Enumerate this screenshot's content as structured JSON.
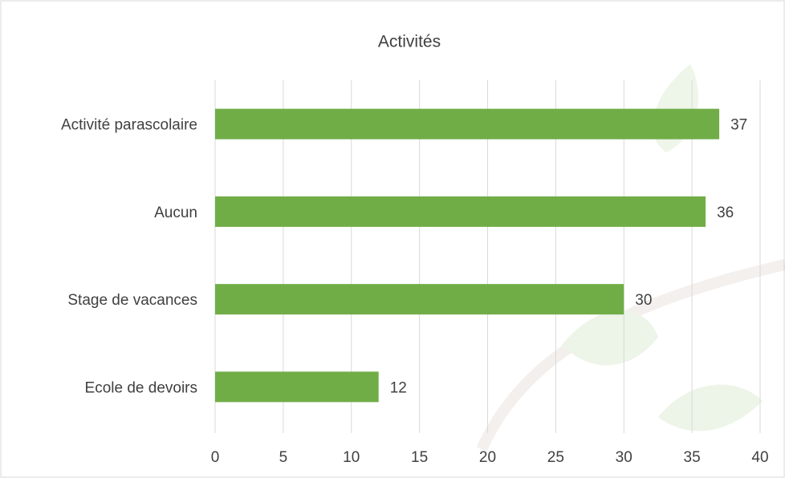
{
  "chart_data": {
    "type": "bar",
    "orientation": "horizontal",
    "title": "Activités",
    "categories": [
      "Activité parascolaire",
      "Aucun",
      "Stage de vacances",
      "Ecole de devoirs"
    ],
    "values": [
      37,
      36,
      30,
      12
    ],
    "color": "#70ad47",
    "xlim": [
      0,
      40
    ],
    "xticks": [
      0,
      5,
      10,
      15,
      20,
      25,
      30,
      35,
      40
    ],
    "grid": true
  }
}
